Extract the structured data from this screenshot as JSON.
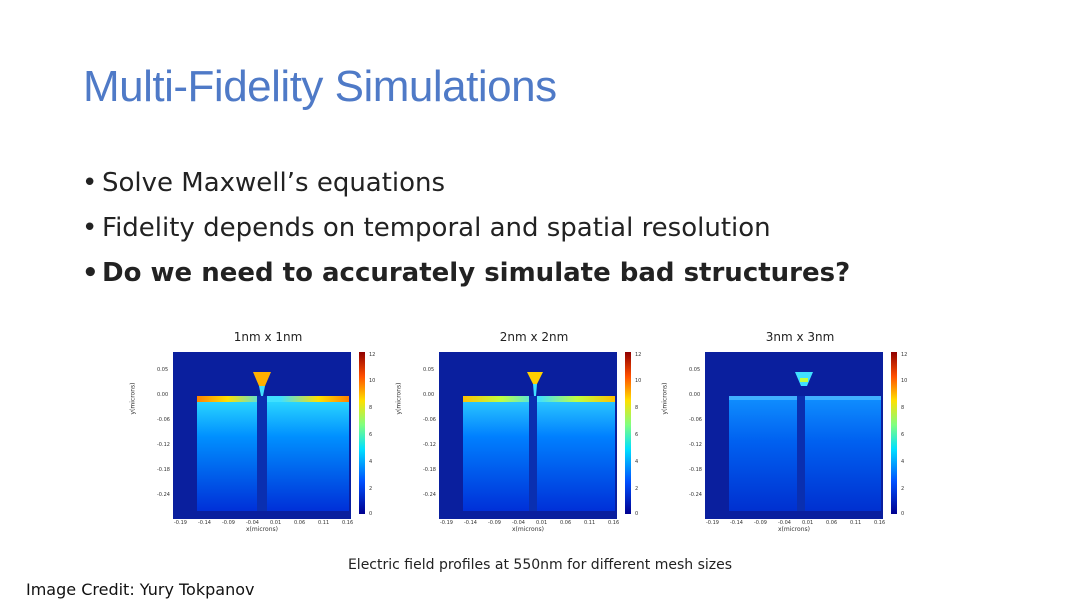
{
  "slide": {
    "title": "Multi-Fidelity Simulations",
    "bullets": [
      {
        "text": "Solve Maxwell’s equations",
        "bold": false
      },
      {
        "text": "Fidelity depends on temporal and spatial resolution",
        "bold": false
      },
      {
        "text": "Do we need to accurately simulate bad structures?",
        "bold": true
      }
    ],
    "bullet_symbol": "•",
    "caption": "Electric field profiles at 550nm for different mesh sizes",
    "credit": "Image Credit: Yury Tokpanov"
  },
  "panels": [
    {
      "title": "1nm x 1nm",
      "ylabel": "y(microns)",
      "xlabel": "x(microns)",
      "yticks": [
        "0.05",
        "0.00",
        "-0.06",
        "-0.12",
        "-0.18",
        "-0.24"
      ],
      "xticks": [
        "-0.19",
        "-0.14",
        "-0.09",
        "-0.04",
        "0.01",
        "0.06",
        "0.11",
        "0.16"
      ],
      "cbticks": [
        "12",
        "10",
        "8",
        "6",
        "4",
        "2",
        "0"
      ]
    },
    {
      "title": "2nm x 2nm",
      "ylabel": "y(microns)",
      "xlabel": "x(microns)",
      "yticks": [
        "0.05",
        "0.00",
        "-0.06",
        "-0.12",
        "-0.18",
        "-0.24"
      ],
      "xticks": [
        "-0.19",
        "-0.14",
        "-0.09",
        "-0.04",
        "0.01",
        "0.06",
        "0.11",
        "0.16"
      ],
      "cbticks": [
        "12",
        "10",
        "8",
        "6",
        "4",
        "2",
        "0"
      ]
    },
    {
      "title": "3nm x 3nm",
      "ylabel": "y(microns)",
      "xlabel": "x(microns)",
      "yticks": [
        "0.05",
        "0.00",
        "-0.06",
        "-0.12",
        "-0.18",
        "-0.24"
      ],
      "xticks": [
        "-0.19",
        "-0.14",
        "-0.09",
        "-0.04",
        "0.01",
        "0.06",
        "0.11",
        "0.16"
      ],
      "cbticks": [
        "12",
        "10",
        "8",
        "6",
        "4",
        "2",
        "0"
      ]
    }
  ],
  "colors": {
    "title": "#4f7ac7",
    "field_bg": "#0a1f9e",
    "colormap": [
      "#00008f",
      "#0050ff",
      "#00e0ff",
      "#80ff80",
      "#ffe000",
      "#ff5000",
      "#8f0000"
    ]
  }
}
